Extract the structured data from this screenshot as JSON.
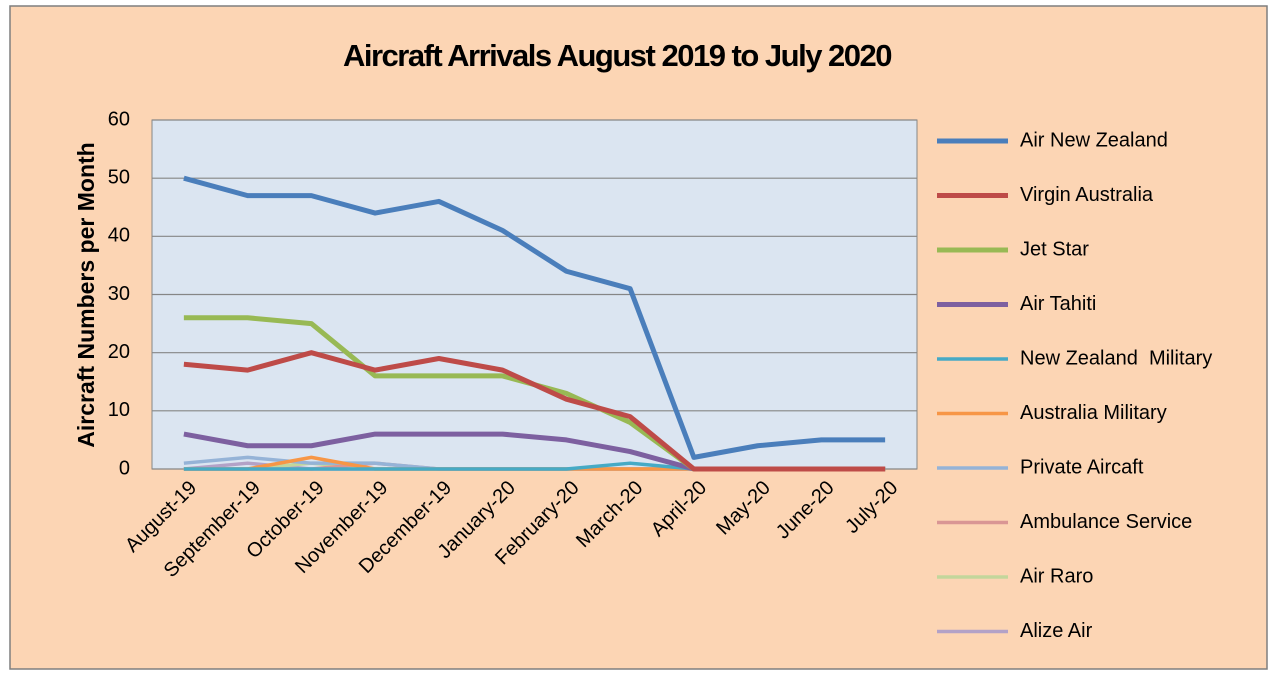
{
  "chart_data": {
    "type": "line",
    "title": "Aircraft Arrivals August 2019 to July 2020",
    "y_label": "Aircraft Numbers per Month",
    "categories": [
      "August-19",
      "September-19",
      "October-19",
      "November-19",
      "December-19",
      "January-20",
      "February-20",
      "March-20",
      "April-20",
      "May-20",
      "June-20",
      "July-20"
    ],
    "ylim": [
      0,
      60
    ],
    "yticks": [
      0,
      10,
      20,
      30,
      40,
      50,
      60
    ],
    "grid": true,
    "legend": "right",
    "series": [
      {
        "name": "Air New Zealand",
        "color": "#4a7ebb",
        "values": [
          50,
          47,
          47,
          44,
          46,
          41,
          34,
          31,
          2,
          4,
          5,
          5
        ]
      },
      {
        "name": "Virgin Australia",
        "color": "#be4b48",
        "values": [
          18,
          17,
          20,
          17,
          19,
          17,
          12,
          9,
          0,
          0,
          0,
          0
        ]
      },
      {
        "name": "Jet Star",
        "color": "#98b954",
        "values": [
          26,
          26,
          25,
          16,
          16,
          16,
          13,
          8,
          0,
          0,
          0,
          0
        ]
      },
      {
        "name": "Air Tahiti",
        "color": "#7d60a0",
        "values": [
          6,
          4,
          4,
          6,
          6,
          6,
          5,
          3,
          0,
          0,
          0,
          0
        ]
      },
      {
        "name": "New Zealand  Military",
        "color": "#46aac5",
        "values": [
          0,
          0,
          0,
          0,
          0,
          0,
          0,
          1,
          0,
          0,
          0,
          0
        ]
      },
      {
        "name": "Australia Military",
        "color": "#f79646",
        "values": [
          0,
          0,
          2,
          0,
          0,
          0,
          0,
          0,
          0,
          0,
          0,
          0
        ]
      },
      {
        "name": "Private Aircaft",
        "color": "#95b3d7",
        "values": [
          1,
          2,
          1,
          1,
          0,
          0,
          0,
          0,
          0,
          0,
          0,
          0
        ]
      },
      {
        "name": "Ambulance Service",
        "color": "#d99694",
        "values": [
          0,
          0,
          0,
          1,
          0,
          0,
          0,
          0,
          0,
          0,
          0,
          0
        ]
      },
      {
        "name": "Air Raro",
        "color": "#c3d69b",
        "values": [
          0,
          0,
          1,
          0,
          0,
          0,
          0,
          0,
          0,
          0,
          0,
          0
        ]
      },
      {
        "name": "Alize Air",
        "color": "#b3a2c7",
        "values": [
          0,
          1,
          0,
          0,
          0,
          0,
          0,
          0,
          0,
          0,
          0,
          0
        ]
      }
    ]
  }
}
